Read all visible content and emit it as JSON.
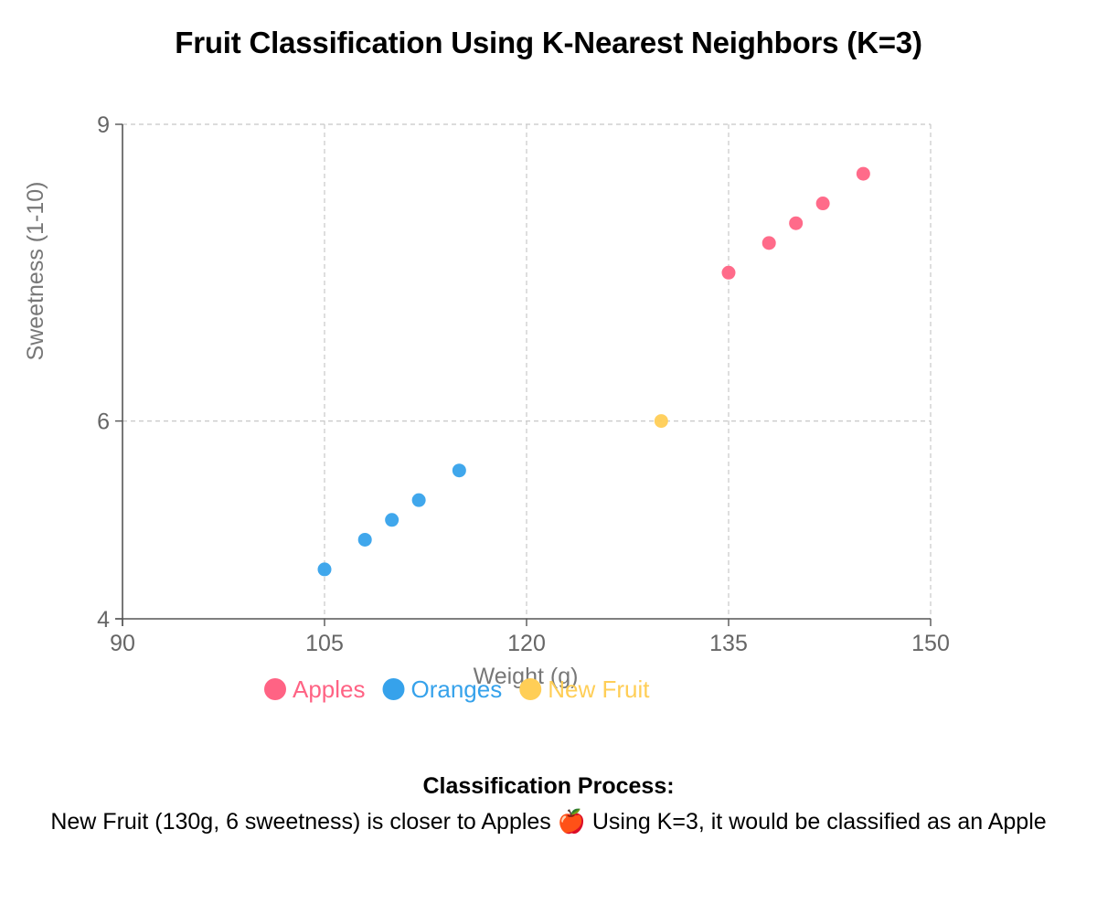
{
  "chart_data": {
    "type": "scatter",
    "title": "Fruit Classification Using K-Nearest Neighbors (K=3)",
    "xlabel": "Weight (g)",
    "ylabel": "Sweetness (1-10)",
    "xlim": [
      90,
      150
    ],
    "ylim": [
      4,
      9
    ],
    "xticks": [
      90,
      105,
      120,
      135,
      150
    ],
    "yticks": [
      4,
      6,
      9
    ],
    "grid": true,
    "legend_position": "bottom",
    "series": [
      {
        "name": "Apples",
        "color": "#ff6384",
        "points": [
          {
            "x": 135,
            "y": 7.5
          },
          {
            "x": 138,
            "y": 7.8
          },
          {
            "x": 140,
            "y": 8.0
          },
          {
            "x": 142,
            "y": 8.2
          },
          {
            "x": 145,
            "y": 8.5
          }
        ]
      },
      {
        "name": "Oranges",
        "color": "#36a2eb",
        "points": [
          {
            "x": 105,
            "y": 4.5
          },
          {
            "x": 108,
            "y": 4.8
          },
          {
            "x": 110,
            "y": 5.0
          },
          {
            "x": 112,
            "y": 5.2
          },
          {
            "x": 115,
            "y": 5.5
          }
        ]
      },
      {
        "name": "New Fruit",
        "color": "#ffce56",
        "points": [
          {
            "x": 130,
            "y": 6
          }
        ]
      }
    ]
  },
  "process": {
    "heading": "Classification Process:",
    "text": "New Fruit (130g, 6 sweetness) is closer to Apples 🍎 Using K=3, it would be classified as an Apple"
  }
}
